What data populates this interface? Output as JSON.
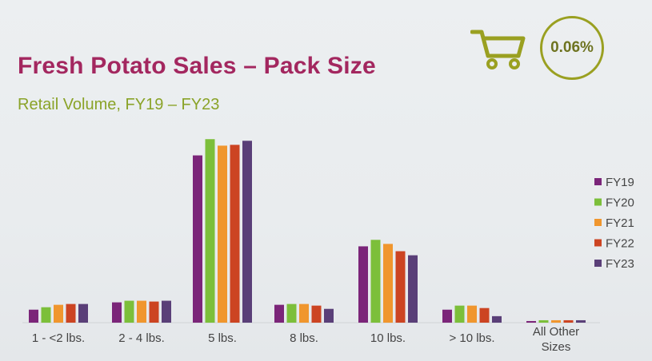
{
  "header": {
    "title": "Fresh Potato Sales – Pack Size",
    "subtitle": "Retail Volume, FY19 – FY23",
    "stat_value": "0.06%"
  },
  "icons": {
    "cart": "shopping-cart-icon"
  },
  "colors": {
    "title": "#a3275f",
    "subtitle": "#8aa328",
    "badge": "#9aa021",
    "series": [
      "#7b2579",
      "#7cbf3a",
      "#f0962e",
      "#cc4422",
      "#5a3f78"
    ]
  },
  "chart_data": {
    "type": "bar",
    "categories": [
      "1 - <2 lbs.",
      "2 - 4 lbs.",
      "5 lbs.",
      "8 lbs.",
      "10 lbs.",
      "> 10 lbs.",
      "All Other Sizes"
    ],
    "series": [
      {
        "name": "FY19",
        "values": [
          16,
          25,
          206,
          22,
          94,
          16,
          2
        ]
      },
      {
        "name": "FY20",
        "values": [
          19,
          27,
          226,
          23,
          102,
          21,
          3
        ]
      },
      {
        "name": "FY21",
        "values": [
          22,
          27,
          218,
          23,
          97,
          21,
          3
        ]
      },
      {
        "name": "FY22",
        "values": [
          23,
          26,
          219,
          21,
          88,
          18,
          3
        ]
      },
      {
        "name": "FY23",
        "values": [
          23,
          27,
          224,
          17,
          83,
          8,
          3
        ]
      }
    ],
    "ylim": [
      0,
      240
    ],
    "legend_position": "right",
    "grid": false
  }
}
